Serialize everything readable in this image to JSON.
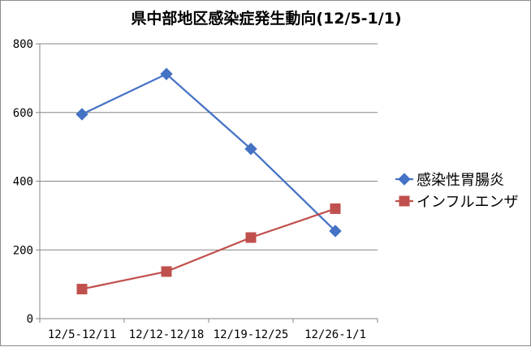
{
  "chart_data": {
    "type": "line",
    "title": "県中部地区感染症発生動向(12/5-1/1)",
    "xlabel": "",
    "ylabel": "",
    "categories": [
      "12/5-12/11",
      "12/12-12/18",
      "12/19-12/25",
      "12/26-1/1"
    ],
    "ylim": [
      0,
      800
    ],
    "yticks": [
      0,
      200,
      400,
      600,
      800
    ],
    "grid": {
      "horizontal": true,
      "vertical": false
    },
    "legend_position": "right",
    "series": [
      {
        "name": "感染性胃腸炎",
        "values": [
          595,
          712,
          494,
          255
        ],
        "color": "#4472C4",
        "marker": "diamond"
      },
      {
        "name": "インフルエンザ",
        "values": [
          86,
          137,
          236,
          320
        ],
        "color": "#C0504D",
        "marker": "square"
      }
    ]
  }
}
